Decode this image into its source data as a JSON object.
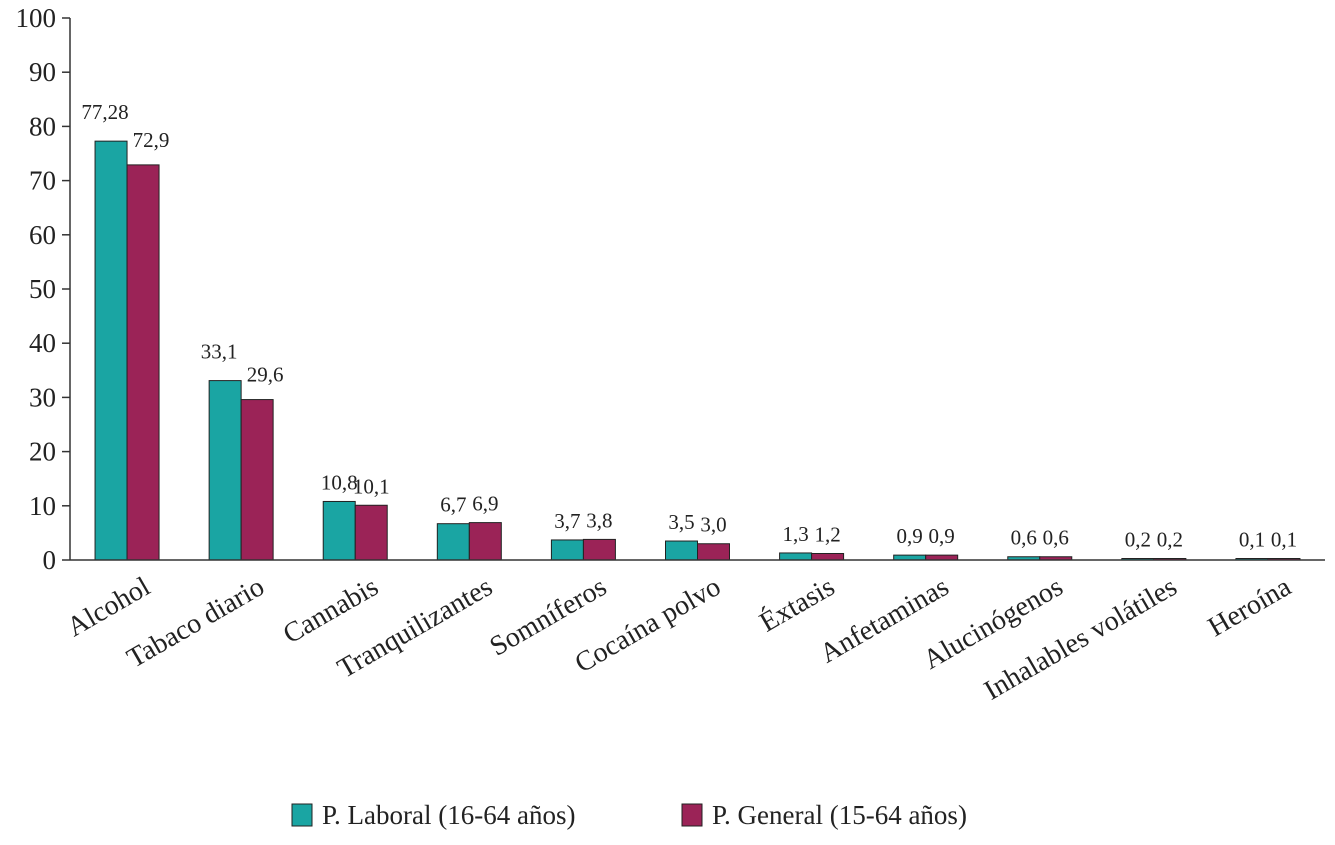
{
  "chart_data": {
    "type": "bar",
    "categories": [
      "Alcohol",
      "Tabaco diario",
      "Cannabis",
      "Tranquilizantes",
      "Somníferos",
      "Cocaína polvo",
      "Éxtasis",
      "Anfetaminas",
      "Alucinógenos",
      "Inhalables volátiles",
      "Heroína"
    ],
    "series": [
      {
        "name": "P. Laboral (16-64 años)",
        "color": "#1aa5a3",
        "values": [
          77.28,
          33.1,
          10.8,
          6.7,
          3.7,
          3.5,
          1.3,
          0.9,
          0.6,
          0.2,
          0.1
        ],
        "labels": [
          "77,28",
          "33,1",
          "10,8",
          "6,7",
          "3,7",
          "3,5",
          "1,3",
          "0,9",
          "0,6",
          "0,2",
          "0,1"
        ]
      },
      {
        "name": "P. General (15-64 años)",
        "color": "#9b2357",
        "values": [
          72.9,
          29.6,
          10.1,
          6.9,
          3.8,
          3.0,
          1.2,
          0.9,
          0.6,
          0.2,
          0.1
        ],
        "labels": [
          "72,9",
          "29,6",
          "10,1",
          "6,9",
          "3,8",
          "3,0",
          "1,2",
          "0,9",
          "0,6",
          "0,2",
          "0,1"
        ]
      }
    ],
    "title": "",
    "xlabel": "",
    "ylabel": "",
    "ylim": [
      0,
      100
    ],
    "yticks": [
      0,
      10,
      20,
      30,
      40,
      50,
      60,
      70,
      80,
      90,
      100
    ],
    "grid": false,
    "legend_position": "bottom"
  }
}
